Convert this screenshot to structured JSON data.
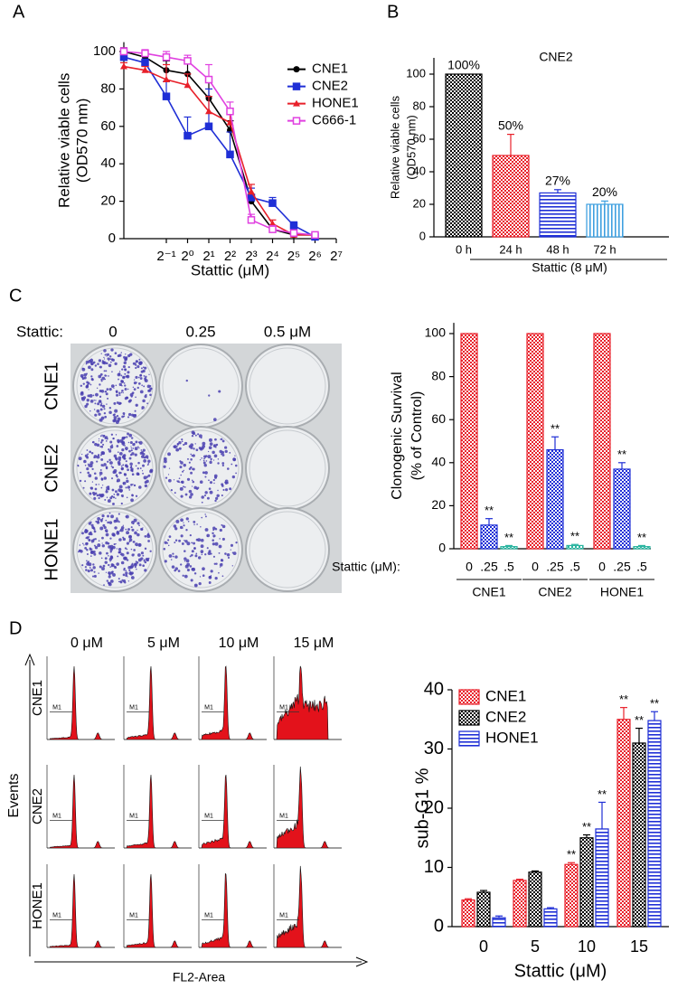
{
  "panel_labels": [
    "A",
    "B",
    "C",
    "D"
  ],
  "colony_assay": {
    "stattic_label": "Stattic:",
    "doses": [
      "0",
      "0.25",
      "0.5 μM"
    ],
    "cell_lines": [
      "CNE1",
      "CNE2",
      "HONE1"
    ]
  },
  "flow_cytometry": {
    "doses": [
      "0 μM",
      "5 μM",
      "10 μM",
      "15 μM"
    ],
    "cell_lines": [
      "CNE1",
      "CNE2",
      "HONE1"
    ],
    "y_label": "Events",
    "x_label": "FL2-Area",
    "gate_label": "M1"
  },
  "chart_data": [
    {
      "type": "line",
      "y_label": [
        "Relative viable cells",
        "(OD570 nm)"
      ],
      "x_label": "Stattic (μM)",
      "x_scale": "log2",
      "x": [
        0.125,
        0.25,
        0.5,
        1,
        2,
        4,
        8,
        16,
        32,
        64
      ],
      "xlim": [
        0.125,
        128
      ],
      "xticks": [
        {
          "value": 0.5,
          "label": "2⁻¹"
        },
        {
          "value": 1,
          "label": "2⁰"
        },
        {
          "value": 2,
          "label": "2¹"
        },
        {
          "value": 4,
          "label": "2²"
        },
        {
          "value": 8,
          "label": "2³"
        },
        {
          "value": 16,
          "label": "2⁴"
        },
        {
          "value": 32,
          "label": "2⁵"
        },
        {
          "value": 64,
          "label": "2⁶"
        },
        {
          "value": 128,
          "label": "2⁷"
        }
      ],
      "ylim": [
        0,
        105
      ],
      "yticks": [
        0,
        20,
        40,
        60,
        80,
        100
      ],
      "legend": "upper right",
      "series": [
        {
          "name": "CNE1",
          "color": "#000000",
          "marker": "circle",
          "values": [
            100,
            97,
            90,
            88,
            75,
            58,
            20,
            5,
            2,
            2
          ],
          "errors": [
            2,
            2,
            5,
            8,
            10,
            5,
            3,
            2,
            1,
            1
          ]
        },
        {
          "name": "CNE2",
          "color": "#1f2fd6",
          "marker": "square",
          "values": [
            97,
            94,
            76,
            55,
            60,
            45,
            22,
            19,
            7,
            1
          ],
          "errors": [
            2,
            2,
            8,
            10,
            20,
            12,
            5,
            3,
            2,
            1
          ]
        },
        {
          "name": "HONE1",
          "color": "#e8202a",
          "marker": "triangle",
          "values": [
            92,
            90,
            85,
            82,
            68,
            62,
            25,
            8,
            2,
            2
          ],
          "errors": [
            2,
            2,
            8,
            6,
            8,
            6,
            4,
            2,
            1,
            1
          ]
        },
        {
          "name": "C666-1",
          "color": "#e040e0",
          "marker": "open-square",
          "values": [
            100,
            99,
            97,
            95,
            85,
            68,
            10,
            5,
            3,
            2
          ],
          "errors": [
            2,
            2,
            3,
            3,
            8,
            5,
            3,
            2,
            1,
            1
          ]
        }
      ]
    },
    {
      "type": "bar",
      "title": "CNE2",
      "y_label": [
        "Relative viable cells",
        "(OD570 nm)"
      ],
      "x_label": "Stattic (8 μM)",
      "categories": [
        "0 h",
        "24 h",
        "48 h",
        "72 h"
      ],
      "values": [
        100,
        50,
        27,
        20
      ],
      "value_labels": [
        "100%",
        "50%",
        "27%",
        "20%"
      ],
      "errors": [
        0,
        13,
        2,
        2
      ],
      "colors": [
        "#000000",
        "#e8202a",
        "#1f2fd6",
        "#3fa0e0"
      ],
      "patterns": [
        "checker",
        "checker",
        "hlines",
        "vlines"
      ],
      "ylim": [
        0,
        110
      ],
      "yticks": [
        0,
        20,
        40,
        60,
        80,
        100
      ]
    },
    {
      "type": "grouped_bar",
      "y_label": [
        "Clonogenic Survival",
        "(% of Control)"
      ],
      "x_label": "Stattic (μM):",
      "categories": [
        "CNE1",
        "CNE2",
        "HONE1"
      ],
      "series": [
        {
          "name": "0",
          "color": "#e8202a",
          "pattern": "checker",
          "values": [
            100,
            100,
            100
          ],
          "errors": [
            0,
            0,
            0
          ]
        },
        {
          "name": ".25",
          "color": "#1f2fd6",
          "pattern": "checker",
          "values": [
            11,
            46,
            37
          ],
          "errors": [
            3,
            6,
            3
          ],
          "significance": [
            "**",
            "**",
            "**"
          ]
        },
        {
          "name": ".5",
          "color": "#2bb5a0",
          "pattern": "checker",
          "values": [
            1,
            1.5,
            1
          ],
          "errors": [
            0.5,
            0.5,
            0.5
          ],
          "significance": [
            "**",
            "**",
            "**"
          ]
        }
      ],
      "ylim": [
        0,
        105
      ],
      "yticks": [
        0,
        20,
        40,
        60,
        80,
        100
      ]
    },
    {
      "type": "grouped_bar",
      "y_label": [
        "sub-G1 %"
      ],
      "x_label": "Stattic (μM)",
      "legend": "upper left",
      "categories": [
        "0",
        "5",
        "10",
        "15"
      ],
      "series": [
        {
          "name": "CNE1",
          "color": "#e8202a",
          "pattern": "checker",
          "values": [
            4.5,
            7.8,
            10.5,
            35
          ],
          "errors": [
            0.2,
            0.2,
            0.3,
            2
          ],
          "significance": [
            null,
            null,
            "**",
            "**"
          ]
        },
        {
          "name": "CNE2",
          "color": "#000000",
          "pattern": "checker",
          "values": [
            5.8,
            9.2,
            15,
            31
          ],
          "errors": [
            0.3,
            0.2,
            0.5,
            2.5
          ],
          "significance": [
            null,
            null,
            "**",
            "**"
          ]
        },
        {
          "name": "HONE1",
          "color": "#1f2fd6",
          "pattern": "hlines",
          "values": [
            1.5,
            3,
            16.5,
            34.8
          ],
          "errors": [
            0.3,
            0.2,
            4.5,
            1.5
          ],
          "significance": [
            null,
            null,
            "**",
            "**"
          ]
        }
      ],
      "ylim": [
        0,
        40
      ],
      "yticks": [
        0,
        10,
        20,
        30,
        40
      ]
    }
  ]
}
